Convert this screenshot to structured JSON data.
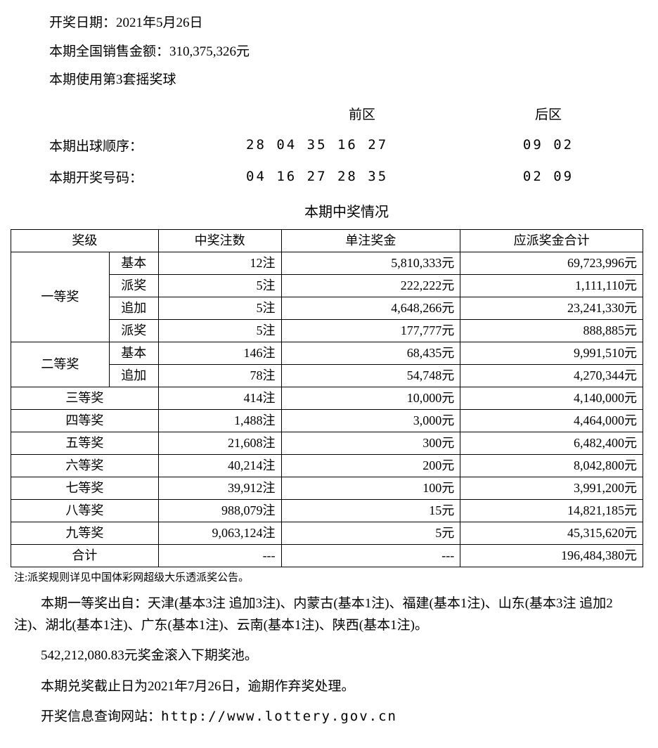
{
  "header": {
    "draw_date_label": "开奖日期：",
    "draw_date_value": "2021年5月26日",
    "sales_label": "本期全国销售金额：",
    "sales_value": "310,375,326元",
    "ballset_line": "本期使用第3套摇奖球"
  },
  "numbers": {
    "front_header": "前区",
    "back_header": "后区",
    "draw_order_label": "本期出球顺序：",
    "draw_order_front": "28 04 35 16 27",
    "draw_order_back": "09 02",
    "winning_label": "本期开奖号码：",
    "winning_front": "04 16 27 28 35",
    "winning_back": "02 09"
  },
  "table": {
    "title": "本期中奖情况",
    "headers": {
      "level": "奖级",
      "count": "中奖注数",
      "unit": "单注奖金",
      "total": "应派奖金合计"
    },
    "tier1_label": "一等奖",
    "tier1": {
      "r1": {
        "sub": "基本",
        "count": "12注",
        "unit": "5,810,333元",
        "total": "69,723,996元"
      },
      "r2": {
        "sub": "派奖",
        "count": "5注",
        "unit": "222,222元",
        "total": "1,111,110元"
      },
      "r3": {
        "sub": "追加",
        "count": "5注",
        "unit": "4,648,266元",
        "total": "23,241,330元"
      },
      "r4": {
        "sub": "派奖",
        "count": "5注",
        "unit": "177,777元",
        "total": "888,885元"
      }
    },
    "tier2_label": "二等奖",
    "tier2": {
      "r1": {
        "sub": "基本",
        "count": "146注",
        "unit": "68,435元",
        "total": "9,991,510元"
      },
      "r2": {
        "sub": "追加",
        "count": "78注",
        "unit": "54,748元",
        "total": "4,270,344元"
      }
    },
    "simple": {
      "r3": {
        "level": "三等奖",
        "count": "414注",
        "unit": "10,000元",
        "total": "4,140,000元"
      },
      "r4": {
        "level": "四等奖",
        "count": "1,488注",
        "unit": "3,000元",
        "total": "4,464,000元"
      },
      "r5": {
        "level": "五等奖",
        "count": "21,608注",
        "unit": "300元",
        "total": "6,482,400元"
      },
      "r6": {
        "level": "六等奖",
        "count": "40,214注",
        "unit": "200元",
        "total": "8,042,800元"
      },
      "r7": {
        "level": "七等奖",
        "count": "39,912注",
        "unit": "100元",
        "total": "3,991,200元"
      },
      "r8": {
        "level": "八等奖",
        "count": "988,079注",
        "unit": "15元",
        "total": "14,821,185元"
      },
      "r9": {
        "level": "九等奖",
        "count": "9,063,124注",
        "unit": "5元",
        "total": "45,315,620元"
      }
    },
    "total_row": {
      "level": "合计",
      "count": "---",
      "unit": "---",
      "total": "196,484,380元"
    }
  },
  "footer": {
    "note": "注:派奖规则详见中国体彩网超级大乐透派奖公告。",
    "winners_para": "本期一等奖出自：天津(基本3注 追加3注)、内蒙古(基本1注)、福建(基本1注)、山东(基本3注 追加2注)、湖北(基本1注)、广东(基本1注)、云南(基本1注)、陕西(基本1注)。",
    "rollover": "542,212,080.83元奖金滚入下期奖池。",
    "deadline": "本期兑奖截止日为2021年7月26日，逾期作弃奖处理。",
    "website_label": "开奖信息查询网站：",
    "website_url": "http://www.lottery.gov.cn"
  },
  "style": {
    "font_size_body": 19,
    "font_size_note": 15,
    "text_color": "#000000",
    "bg_color": "#ffffff",
    "border_color": "#000000"
  }
}
